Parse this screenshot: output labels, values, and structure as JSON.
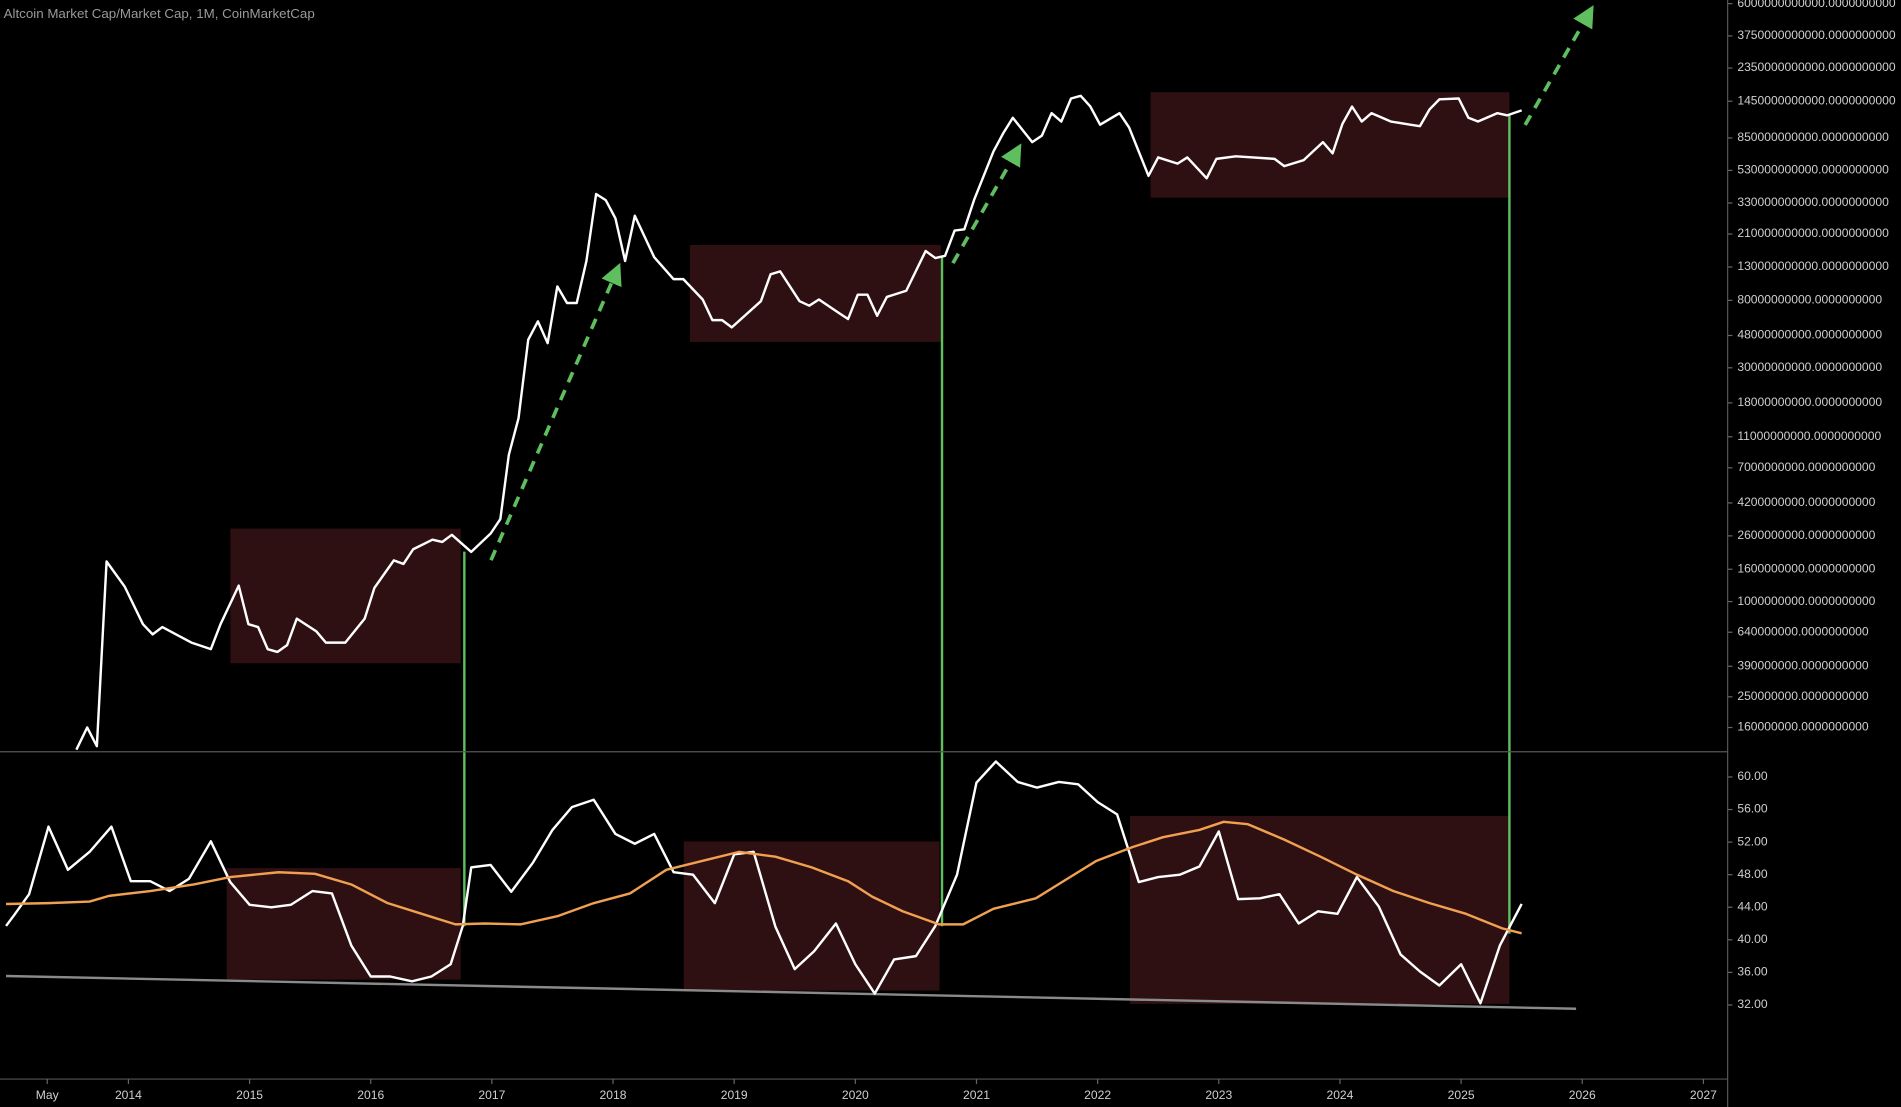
{
  "chart_data": [
    {
      "type": "line",
      "title": "Altcoin Market Cap/Market Cap, 1M, CoinMarketCap",
      "log": true,
      "xlim": [
        2012.94,
        2027.2
      ],
      "ylim": [
        112500000,
        6320000000000
      ],
      "yticks": [
        {
          "value": 6000000000000,
          "label": "6000000000000.0000000000"
        },
        {
          "value": 3750000000000,
          "label": "3750000000000.0000000000"
        },
        {
          "value": 2350000000000,
          "label": "2350000000000.0000000000"
        },
        {
          "value": 1450000000000,
          "label": "1450000000000.0000000000"
        },
        {
          "value": 850000000000,
          "label": "850000000000.0000000000"
        },
        {
          "value": 530000000000,
          "label": "530000000000.0000000000"
        },
        {
          "value": 330000000000,
          "label": "330000000000.0000000000"
        },
        {
          "value": 210000000000,
          "label": "210000000000.0000000000"
        },
        {
          "value": 130000000000,
          "label": "130000000000.0000000000"
        },
        {
          "value": 80000000000,
          "label": "80000000000.0000000000"
        },
        {
          "value": 48000000000,
          "label": "48000000000.0000000000"
        },
        {
          "value": 30000000000,
          "label": "30000000000.0000000000"
        },
        {
          "value": 18000000000,
          "label": "18000000000.0000000000"
        },
        {
          "value": 11000000000,
          "label": "11000000000.0000000000"
        },
        {
          "value": 7000000000,
          "label": "7000000000.0000000000"
        },
        {
          "value": 4200000000,
          "label": "4200000000.0000000000"
        },
        {
          "value": 2600000000,
          "label": "2600000000.0000000000"
        },
        {
          "value": 1600000000,
          "label": "1600000000.0000000000"
        },
        {
          "value": 1000000000,
          "label": "1000000000.0000000000"
        },
        {
          "value": 640000000,
          "label": "640000000.0000000000"
        },
        {
          "value": 390000000,
          "label": "390000000.0000000000"
        },
        {
          "value": 250000000,
          "label": "250000000.0000000000"
        },
        {
          "value": 160000000,
          "label": "160000000.0000000000"
        }
      ],
      "series": [
        {
          "color": "#ffffff",
          "x": [
            2013.57,
            2013.66,
            2013.74,
            2013.82,
            2013.97,
            2014.12,
            2014.2,
            2014.28,
            2014.52,
            2014.68,
            2014.76,
            2014.91,
            2014.99,
            2015.07,
            2015.15,
            2015.23,
            2015.31,
            2015.39,
            2015.55,
            2015.63,
            2015.79,
            2015.95,
            2016.03,
            2016.19,
            2016.27,
            2016.35,
            2016.51,
            2016.59,
            2016.67,
            2016.83,
            2016.99,
            2017.07,
            2017.14,
            2017.22,
            2017.3,
            2017.38,
            2017.46,
            2017.54,
            2017.62,
            2017.7,
            2017.78,
            2017.86,
            2017.94,
            2018.02,
            2018.1,
            2018.18,
            2018.34,
            2018.5,
            2018.58,
            2018.74,
            2018.82,
            2018.9,
            2018.98,
            2019.22,
            2019.3,
            2019.38,
            2019.54,
            2019.62,
            2019.7,
            2019.86,
            2019.94,
            2020.02,
            2020.1,
            2020.18,
            2020.26,
            2020.42,
            2020.58,
            2020.66,
            2020.74,
            2020.82,
            2020.9,
            2020.98,
            2021.14,
            2021.22,
            2021.3,
            2021.46,
            2021.54,
            2021.62,
            2021.7,
            2021.78,
            2021.86,
            2021.94,
            2022.02,
            2022.18,
            2022.26,
            2022.42,
            2022.5,
            2022.66,
            2022.74,
            2022.9,
            2022.98,
            2023.14,
            2023.46,
            2023.54,
            2023.7,
            2023.86,
            2023.94,
            2024.02,
            2024.1,
            2024.18,
            2024.26,
            2024.42,
            2024.58,
            2024.66,
            2024.74,
            2024.82,
            2024.98,
            2025.06,
            2025.14,
            2025.3,
            2025.38,
            2025.5
          ],
          "values": [
            116000000.0,
            160000000.0,
            122000000.0,
            1790000000.0,
            1240000000.0,
            720000000.0,
            620000000.0,
            690000000.0,
            550000000.0,
            500000000.0,
            720000000.0,
            1260000000.0,
            720000000.0,
            690000000.0,
            500000000.0,
            480000000.0,
            530000000.0,
            780000000.0,
            650000000.0,
            550000000.0,
            550000000.0,
            780000000.0,
            1220000000.0,
            1820000000.0,
            1730000000.0,
            2140000000.0,
            2460000000.0,
            2380000000.0,
            2640000000.0,
            2060000000.0,
            2690000000.0,
            3320000000.0,
            8450000000.0,
            14400000000.0,
            45200000000.0,
            59000000000.0,
            42900000000.0,
            98000000000.0,
            77000000000.0,
            77000000000.0,
            142000000000.0,
            376000000000.0,
            344000000000.0,
            264000000000.0,
            142000000000.0,
            274000000000.0,
            150000000000.0,
            109000000000.0,
            109000000000.0,
            81000000000.0,
            60000000000.0,
            60000000000.0,
            54000000000.0,
            79000000000.0,
            117000000000.0,
            122000000000.0,
            79000000000.0,
            74000000000.0,
            81000000000.0,
            67000000000.0,
            61000000000.0,
            87000000000.0,
            87000000000.0,
            64000000000.0,
            84000000000.0,
            92000000000.0,
            164000000000.0,
            148000000000.0,
            153000000000.0,
            221000000000.0,
            225000000000.0,
            344000000000.0,
            697000000000.0,
            908000000000.0,
            1140000000000.0,
            800000000000.0,
            880000000000.0,
            1220000000000.0,
            1080000000000.0,
            1510000000000.0,
            1570000000000.0,
            1340000000000.0,
            1030000000000.0,
            1220000000000.0,
            990000000000.0,
            490000000000.0,
            640000000000.0,
            585000000000.0,
            640000000000.0,
            473000000000.0,
            627000000000.0,
            650000000000.0,
            627000000000.0,
            564000000000.0,
            615000000000.0,
            800000000000.0,
            680000000000.0,
            1040000000000.0,
            1340000000000.0,
            1080000000000.0,
            1220000000000.0,
            1080000000000.0,
            1030000000000.0,
            1010000000000.0,
            1290000000000.0,
            1490000000000.0,
            1510000000000.0,
            1140000000000.0,
            1080000000000.0,
            1220000000000.0,
            1180000000000.0,
            1270000000000.0
          ]
        }
      ]
    },
    {
      "type": "line",
      "xlim": [
        2012.94,
        2027.2
      ],
      "ylim": [
        22.9,
        63.1
      ],
      "xticks": [
        {
          "value": 2013.33,
          "label": "May"
        },
        2014,
        2015,
        2016,
        2017,
        2018,
        2019,
        2020,
        2021,
        2022,
        2023,
        2024,
        2025,
        2026,
        2027
      ],
      "yticks": [
        {
          "value": 60,
          "label": "60.00"
        },
        {
          "value": 56,
          "label": "56.00"
        },
        {
          "value": 52,
          "label": "52.00"
        },
        {
          "value": 48,
          "label": "48.00"
        },
        {
          "value": 44,
          "label": "44.00"
        },
        {
          "value": 40,
          "label": "40.00"
        },
        {
          "value": 36,
          "label": "36.00"
        },
        {
          "value": 32,
          "label": "32.00"
        }
      ],
      "series": [
        {
          "color": "#ffffff",
          "x": [
            2012.99,
            2013.06,
            2013.18,
            2013.34,
            2013.5,
            2013.68,
            2013.86,
            2014.02,
            2014.18,
            2014.34,
            2014.5,
            2014.68,
            2014.84,
            2015.0,
            2015.18,
            2015.34,
            2015.52,
            2015.68,
            2015.84,
            2016.0,
            2016.16,
            2016.34,
            2016.5,
            2016.66,
            2016.76,
            2016.83,
            2016.99,
            2017.16,
            2017.34,
            2017.5,
            2017.66,
            2017.84,
            2018.02,
            2018.18,
            2018.34,
            2018.5,
            2018.66,
            2018.84,
            2019.0,
            2019.16,
            2019.34,
            2019.5,
            2019.66,
            2019.84,
            2020.0,
            2020.16,
            2020.32,
            2020.5,
            2020.66,
            2020.84,
            2021.0,
            2021.16,
            2021.34,
            2021.5,
            2021.68,
            2021.84,
            2022.0,
            2022.16,
            2022.34,
            2022.5,
            2022.68,
            2022.84,
            2023.0,
            2023.16,
            2023.34,
            2023.5,
            2023.66,
            2023.82,
            2023.98,
            2024.14,
            2024.32,
            2024.5,
            2024.66,
            2024.82,
            2025.0,
            2025.16,
            2025.32,
            2025.5
          ],
          "values": [
            41.7,
            43.1,
            45.6,
            53.9,
            48.6,
            50.8,
            53.9,
            47.2,
            47.2,
            46.0,
            47.5,
            52.1,
            47.1,
            44.3,
            44.0,
            44.3,
            46.0,
            45.7,
            39.3,
            35.5,
            35.5,
            34.9,
            35.5,
            37.0,
            41.7,
            48.9,
            49.2,
            45.9,
            49.5,
            53.5,
            56.3,
            57.2,
            53.0,
            51.8,
            53.0,
            48.3,
            48.0,
            44.5,
            50.5,
            50.8,
            41.6,
            36.4,
            38.6,
            42.0,
            37.0,
            33.4,
            37.6,
            38.0,
            41.7,
            48.0,
            59.3,
            61.9,
            59.4,
            58.7,
            59.4,
            59.1,
            56.9,
            55.4,
            47.1,
            47.7,
            48.0,
            49.0,
            53.3,
            45.0,
            45.1,
            45.6,
            42.0,
            43.5,
            43.2,
            47.7,
            44.1,
            38.2,
            36.1,
            34.4,
            37.0,
            32.2,
            39.3,
            44.4
          ]
        },
        {
          "color": "#f0a050",
          "x": [
            2012.99,
            2013.34,
            2013.68,
            2013.84,
            2014.18,
            2014.54,
            2014.84,
            2015.24,
            2015.54,
            2015.84,
            2016.14,
            2016.44,
            2016.7,
            2016.94,
            2017.24,
            2017.54,
            2017.84,
            2018.14,
            2018.44,
            2018.74,
            2019.04,
            2019.34,
            2019.64,
            2019.94,
            2020.14,
            2020.39,
            2020.69,
            2020.89,
            2021.14,
            2021.49,
            2021.74,
            2021.99,
            2022.29,
            2022.54,
            2022.84,
            2023.04,
            2023.24,
            2023.54,
            2023.84,
            2024.14,
            2024.44,
            2024.74,
            2025.04,
            2025.34,
            2025.5
          ],
          "values": [
            44.4,
            44.5,
            44.7,
            45.4,
            46.0,
            46.8,
            47.7,
            48.3,
            48.1,
            46.8,
            44.5,
            43.1,
            41.9,
            42.0,
            41.9,
            42.9,
            44.5,
            45.7,
            48.6,
            49.7,
            50.8,
            50.2,
            48.9,
            47.2,
            45.3,
            43.5,
            41.9,
            41.9,
            43.8,
            45.1,
            47.4,
            49.7,
            51.4,
            52.6,
            53.5,
            54.5,
            54.2,
            52.3,
            50.2,
            48.0,
            46.0,
            44.5,
            43.2,
            41.4,
            40.8
          ]
        }
      ]
    }
  ]
}
